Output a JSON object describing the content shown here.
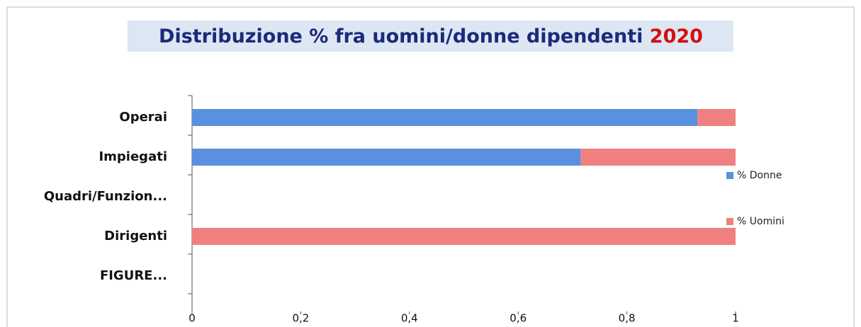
{
  "chart_data": {
    "type": "stacked-barh",
    "title": "Distribuzione % fra uomini/donne  dipendenti",
    "title_highlight": "2020",
    "categories": [
      "Operai",
      "Impiegati",
      "Quadri/Funzion...",
      "Dirigenti",
      "FIGURE..."
    ],
    "series": [
      {
        "name": "% Donne",
        "color": "#5b8fe0",
        "values": [
          0.93,
          0.715,
          0,
          0,
          0
        ]
      },
      {
        "name": "% Uomini",
        "color": "#f08080",
        "values": [
          0.07,
          0.285,
          0,
          1,
          0
        ]
      }
    ],
    "xlim": [
      0,
      1
    ],
    "xticks": [
      0,
      {
        "value": 0.2,
        "label": "0,2"
      },
      {
        "value": 0.4,
        "label": "0,4"
      },
      {
        "value": 0.6,
        "label": "0,6"
      },
      {
        "value": 0.8,
        "label": "0,8"
      },
      1
    ],
    "legend": "right"
  }
}
